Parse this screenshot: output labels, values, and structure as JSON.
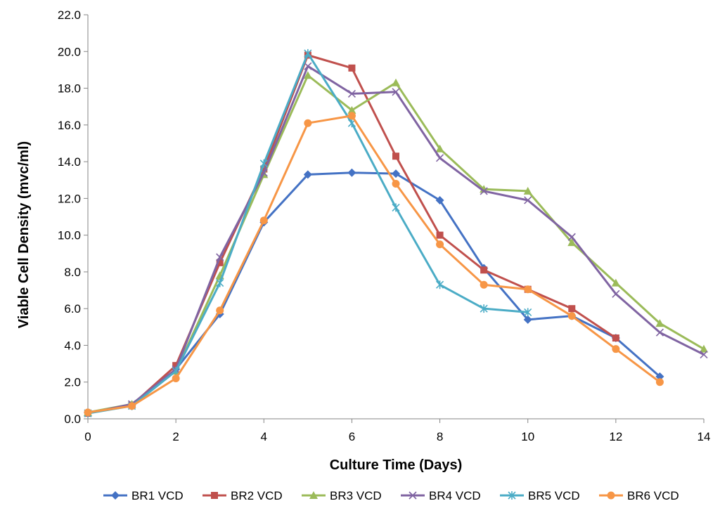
{
  "chart_data": {
    "type": "line",
    "title": "",
    "xlabel": "Culture Time (Days)",
    "ylabel": "Viable Cell Density (mvc/ml)",
    "xlim": [
      0,
      14
    ],
    "ylim": [
      0,
      22
    ],
    "x_ticks": [
      "0",
      "2",
      "4",
      "6",
      "8",
      "10",
      "12",
      "14"
    ],
    "y_ticks": [
      "0.0",
      "2.0",
      "4.0",
      "6.0",
      "8.0",
      "10.0",
      "12.0",
      "14.0",
      "16.0",
      "18.0",
      "20.0",
      "22.0"
    ],
    "grid": false,
    "legend_position": "bottom",
    "series": [
      {
        "name": "BR1 VCD",
        "color": "#4472C4",
        "marker": "diamond",
        "points": [
          [
            0,
            0.35
          ],
          [
            1,
            0.75
          ],
          [
            2,
            2.7
          ],
          [
            3,
            5.7
          ],
          [
            4,
            10.7
          ],
          [
            5,
            13.3
          ],
          [
            6,
            13.4
          ],
          [
            7,
            13.35
          ],
          [
            8,
            11.9
          ],
          [
            9,
            8.2
          ],
          [
            10,
            5.4
          ],
          [
            11,
            5.6
          ],
          [
            12,
            4.4
          ],
          [
            13,
            2.3
          ]
        ]
      },
      {
        "name": "BR2 VCD",
        "color": "#C0504D",
        "marker": "square",
        "points": [
          [
            0,
            0.3
          ],
          [
            1,
            0.75
          ],
          [
            2,
            2.9
          ],
          [
            3,
            8.5
          ],
          [
            4,
            13.6
          ],
          [
            5,
            19.8
          ],
          [
            6,
            19.1
          ],
          [
            7,
            14.3
          ],
          [
            8,
            10.0
          ],
          [
            9,
            8.1
          ],
          [
            10,
            7.05
          ],
          [
            11,
            6.0
          ],
          [
            12,
            4.4
          ]
        ]
      },
      {
        "name": "BR3 VCD",
        "color": "#9BBB59",
        "marker": "triangle",
        "points": [
          [
            0,
            0.35
          ],
          [
            1,
            0.8
          ],
          [
            2,
            2.6
          ],
          [
            3,
            7.8
          ],
          [
            4,
            13.3
          ],
          [
            5,
            18.7
          ],
          [
            6,
            16.8
          ],
          [
            7,
            18.3
          ],
          [
            8,
            14.7
          ],
          [
            9,
            12.5
          ],
          [
            10,
            12.4
          ],
          [
            11,
            9.6
          ],
          [
            12,
            7.4
          ],
          [
            13,
            5.2
          ],
          [
            14,
            3.8
          ]
        ]
      },
      {
        "name": "BR4 VCD",
        "color": "#8064A2",
        "marker": "x",
        "points": [
          [
            0,
            0.3
          ],
          [
            1,
            0.8
          ],
          [
            2,
            2.7
          ],
          [
            3,
            8.8
          ],
          [
            4,
            13.4
          ],
          [
            5,
            19.2
          ],
          [
            6,
            17.7
          ],
          [
            7,
            17.8
          ],
          [
            8,
            14.2
          ],
          [
            9,
            12.4
          ],
          [
            10,
            11.9
          ],
          [
            11,
            9.9
          ],
          [
            12,
            6.8
          ],
          [
            13,
            4.7
          ],
          [
            14,
            3.5
          ]
        ]
      },
      {
        "name": "BR5 VCD",
        "color": "#4BACC6",
        "marker": "star",
        "points": [
          [
            0,
            0.3
          ],
          [
            1,
            0.7
          ],
          [
            2,
            2.6
          ],
          [
            3,
            7.4
          ],
          [
            4,
            13.9
          ],
          [
            5,
            19.9
          ],
          [
            6,
            16.1
          ],
          [
            7,
            11.5
          ],
          [
            8,
            7.3
          ],
          [
            9,
            6.0
          ],
          [
            10,
            5.8
          ]
        ]
      },
      {
        "name": "BR6 VCD",
        "color": "#F79646",
        "marker": "circle",
        "points": [
          [
            0,
            0.35
          ],
          [
            1,
            0.7
          ],
          [
            2,
            2.2
          ],
          [
            3,
            5.9
          ],
          [
            4,
            10.8
          ],
          [
            5,
            16.1
          ],
          [
            6,
            16.5
          ],
          [
            7,
            12.8
          ],
          [
            8,
            9.5
          ],
          [
            9,
            7.3
          ],
          [
            10,
            7.05
          ],
          [
            11,
            5.6
          ],
          [
            12,
            3.8
          ],
          [
            13,
            2.0
          ]
        ]
      }
    ]
  }
}
